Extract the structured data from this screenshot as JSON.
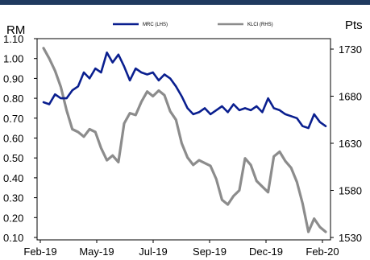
{
  "chart_data": {
    "type": "line",
    "title": "",
    "left_axis_label": "RM",
    "right_axis_label": "Pts",
    "x_ticks": [
      "Feb-19",
      "May-19",
      "Jul-19",
      "Sep-19",
      "Dec-19",
      "Feb-20"
    ],
    "y_left_ticks": [
      "1.10",
      "1.00",
      "0.90",
      "0.80",
      "0.70",
      "0.60",
      "0.50",
      "0.40",
      "0.30",
      "0.20",
      "0.10"
    ],
    "y_left_lim": [
      0.1,
      1.1
    ],
    "y_right_ticks": [
      "1730",
      "1680",
      "1630",
      "1580",
      "1530"
    ],
    "y_right_lim": [
      1530,
      1740
    ],
    "grid": false,
    "legend_position": "top",
    "series": [
      {
        "name": "MRC (LHS)",
        "axis": "left",
        "color": "#0a1f8f",
        "points": [
          [
            "Feb-19",
            0.78
          ],
          [
            "Feb-19",
            0.77
          ],
          [
            "Feb-19",
            0.82
          ],
          [
            "Mar-19",
            0.8
          ],
          [
            "Mar-19",
            0.8
          ],
          [
            "Mar-19",
            0.84
          ],
          [
            "Mar-19",
            0.86
          ],
          [
            "Apr-19",
            0.93
          ],
          [
            "Apr-19",
            0.9
          ],
          [
            "Apr-19",
            0.95
          ],
          [
            "Apr-19",
            0.93
          ],
          [
            "May-19",
            1.03
          ],
          [
            "May-19",
            0.98
          ],
          [
            "May-19",
            1.02
          ],
          [
            "May-19",
            0.96
          ],
          [
            "Jun-19",
            0.89
          ],
          [
            "Jun-19",
            0.95
          ],
          [
            "Jun-19",
            0.93
          ],
          [
            "Jun-19",
            0.92
          ],
          [
            "Jul-19",
            0.93
          ],
          [
            "Jul-19",
            0.89
          ],
          [
            "Jul-19",
            0.92
          ],
          [
            "Jul-19",
            0.9
          ],
          [
            "Aug-19",
            0.86
          ],
          [
            "Aug-19",
            0.81
          ],
          [
            "Aug-19",
            0.75
          ],
          [
            "Aug-19",
            0.72
          ],
          [
            "Sep-19",
            0.73
          ],
          [
            "Sep-19",
            0.75
          ],
          [
            "Sep-19",
            0.72
          ],
          [
            "Sep-19",
            0.74
          ],
          [
            "Oct-19",
            0.76
          ],
          [
            "Oct-19",
            0.73
          ],
          [
            "Oct-19",
            0.77
          ],
          [
            "Oct-19",
            0.74
          ],
          [
            "Nov-19",
            0.75
          ],
          [
            "Nov-19",
            0.74
          ],
          [
            "Nov-19",
            0.76
          ],
          [
            "Nov-19",
            0.73
          ],
          [
            "Dec-19",
            0.8
          ],
          [
            "Dec-19",
            0.75
          ],
          [
            "Dec-19",
            0.74
          ],
          [
            "Dec-19",
            0.72
          ],
          [
            "Jan-20",
            0.71
          ],
          [
            "Jan-20",
            0.7
          ],
          [
            "Jan-20",
            0.66
          ],
          [
            "Jan-20",
            0.65
          ],
          [
            "Feb-20",
            0.72
          ],
          [
            "Feb-20",
            0.68
          ],
          [
            "Feb-20",
            0.66
          ]
        ]
      },
      {
        "name": "KLCI (RHS)",
        "axis": "right",
        "color": "#8c8c8c",
        "points": [
          [
            "Feb-19",
            1731
          ],
          [
            "Feb-19",
            1720
          ],
          [
            "Feb-19",
            1707
          ],
          [
            "Mar-19",
            1690
          ],
          [
            "Mar-19",
            1665
          ],
          [
            "Mar-19",
            1645
          ],
          [
            "Mar-19",
            1642
          ],
          [
            "Apr-19",
            1637
          ],
          [
            "Apr-19",
            1645
          ],
          [
            "Apr-19",
            1642
          ],
          [
            "Apr-19",
            1625
          ],
          [
            "May-19",
            1612
          ],
          [
            "May-19",
            1617
          ],
          [
            "May-19",
            1610
          ],
          [
            "May-19",
            1651
          ],
          [
            "Jun-19",
            1662
          ],
          [
            "Jun-19",
            1660
          ],
          [
            "Jun-19",
            1674
          ],
          [
            "Jun-19",
            1685
          ],
          [
            "Jul-19",
            1680
          ],
          [
            "Jul-19",
            1686
          ],
          [
            "Jul-19",
            1681
          ],
          [
            "Jul-19",
            1664
          ],
          [
            "Aug-19",
            1655
          ],
          [
            "Aug-19",
            1630
          ],
          [
            "Aug-19",
            1615
          ],
          [
            "Aug-19",
            1607
          ],
          [
            "Sep-19",
            1612
          ],
          [
            "Sep-19",
            1609
          ],
          [
            "Sep-19",
            1606
          ],
          [
            "Sep-19",
            1592
          ],
          [
            "Oct-19",
            1570
          ],
          [
            "Oct-19",
            1565
          ],
          [
            "Oct-19",
            1574
          ],
          [
            "Oct-19",
            1580
          ],
          [
            "Nov-19",
            1614
          ],
          [
            "Nov-19",
            1607
          ],
          [
            "Nov-19",
            1590
          ],
          [
            "Nov-19",
            1584
          ],
          [
            "Dec-19",
            1578
          ],
          [
            "Dec-19",
            1616
          ],
          [
            "Dec-19",
            1621
          ],
          [
            "Dec-19",
            1611
          ],
          [
            "Jan-20",
            1604
          ],
          [
            "Jan-20",
            1589
          ],
          [
            "Jan-20",
            1566
          ],
          [
            "Jan-20",
            1536
          ],
          [
            "Feb-20",
            1550
          ],
          [
            "Feb-20",
            1541
          ],
          [
            "Feb-20",
            1536
          ]
        ]
      }
    ]
  }
}
